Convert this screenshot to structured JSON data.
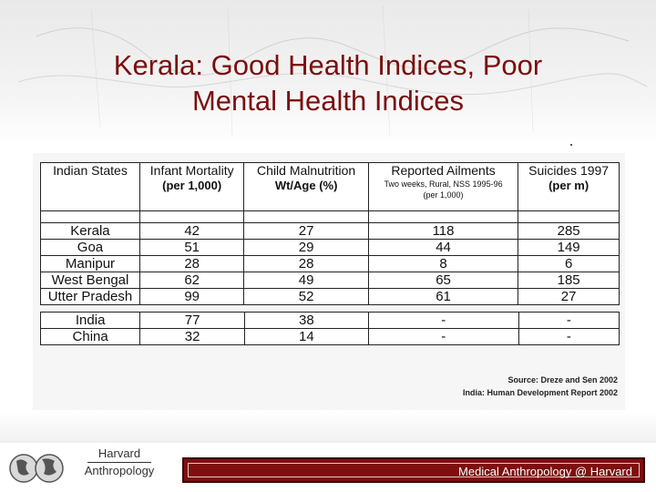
{
  "slide": {
    "title_line1": "Kerala: Good Health Indices, Poor",
    "title_line2": "Mental Health Indices"
  },
  "table": {
    "headers": [
      {
        "label": "Indian States",
        "sub": ""
      },
      {
        "label": "Infant Mortality",
        "sub": "(per 1,000)"
      },
      {
        "label": "Child Malnutrition",
        "sub": "Wt/Age (%)"
      },
      {
        "label": "Reported  Ailments",
        "sub": "Two weeks, Rural, NSS 1995-96",
        "sub2": "(per 1,000)"
      },
      {
        "label": "Suicides 1997",
        "sub": "(per m)"
      }
    ],
    "rows": [
      [
        "Kerala",
        "42",
        "27",
        "118",
        "285"
      ],
      [
        "Goa",
        "51",
        "29",
        "44",
        "149"
      ],
      [
        "Manipur",
        "28",
        "28",
        "8",
        "6"
      ],
      [
        "West Bengal",
        "62",
        "49",
        "65",
        "185"
      ],
      [
        "Utter Pradesh",
        "99",
        "52",
        "61",
        "27"
      ]
    ],
    "comparison_rows": [
      [
        "India",
        "77",
        "38",
        "-",
        "-"
      ],
      [
        "China",
        "32",
        "14",
        "-",
        "-"
      ]
    ]
  },
  "source": {
    "line1": "Source: Dreze and Sen 2002",
    "line2": "India: Human Development Report 2002"
  },
  "footer": {
    "brand_line1": "Harvard",
    "brand_line2": "Anthropology",
    "bar_text": "Medical Anthropology @ Harvard"
  },
  "colors": {
    "title": "#7a0f0f",
    "footer_bar": "#7d0f0f"
  },
  "icons": {
    "logo": "globe-icon"
  }
}
